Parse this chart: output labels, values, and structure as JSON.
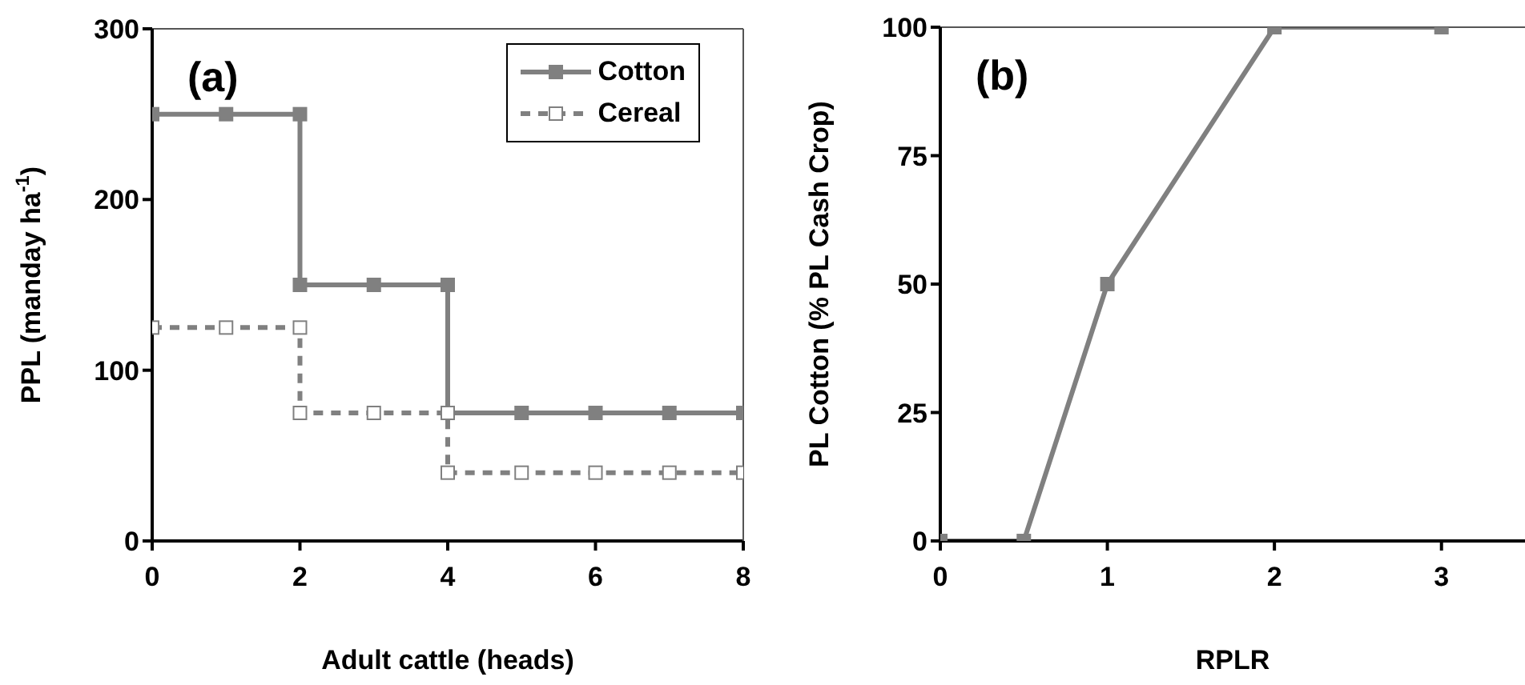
{
  "chart_data": [
    {
      "type": "line",
      "title": "(a)",
      "xlabel": "Adult cattle (heads)",
      "ylabel": "PPL (manday ha$^{-1}$)",
      "xlim": [
        0,
        8
      ],
      "xticks": [
        0,
        2,
        4,
        6,
        8
      ],
      "ylim": [
        0,
        300
      ],
      "yticks": [
        0,
        100,
        200,
        300
      ],
      "grid": false,
      "legend": "top right",
      "series": [
        {
          "name": "Cotton",
          "color": "#808080",
          "marker": "square",
          "line_style": "solid",
          "x": [
            0,
            1,
            2,
            2,
            3,
            4,
            4,
            5,
            6,
            7,
            8
          ],
          "values": [
            250,
            250,
            250,
            150,
            150,
            150,
            75,
            75,
            75,
            75,
            75
          ]
        },
        {
          "name": "Cereal",
          "color": "#808080",
          "marker": "square",
          "line_style": "dashed",
          "x": [
            0,
            1,
            2,
            2,
            3,
            4,
            4,
            5,
            6,
            7,
            8
          ],
          "values": [
            125,
            125,
            125,
            75,
            75,
            75,
            40,
            40,
            40,
            40,
            40
          ]
        }
      ]
    },
    {
      "type": "line",
      "title": "(b)",
      "xlabel": "RPLR",
      "ylabel": "PL Cotton (% PL Cash Crop)",
      "xlim": [
        0,
        3.5
      ],
      "xticks": [
        0,
        1,
        2,
        3
      ],
      "ylim": [
        0,
        100
      ],
      "yticks": [
        0,
        25,
        50,
        75,
        100
      ],
      "grid": false,
      "legend": false,
      "series": [
        {
          "color": "#808080",
          "marker": "square",
          "line_style": "solid",
          "x": [
            0,
            0.5,
            1,
            2,
            3
          ],
          "values": [
            0,
            0,
            50,
            100,
            100
          ]
        }
      ]
    }
  ]
}
